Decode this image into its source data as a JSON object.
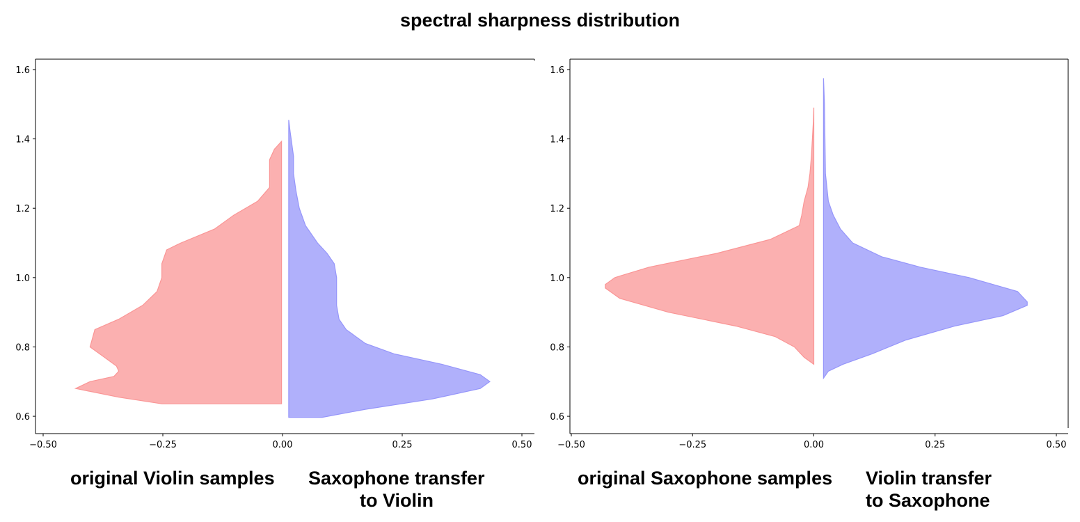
{
  "title": "spectral sharpness distribution",
  "colors": {
    "left": "#fa9696",
    "right": "#9696fa",
    "axis": "#000000"
  },
  "chart_data": [
    {
      "type": "violin",
      "ylim": [
        0.55,
        1.63
      ],
      "xlim": [
        -0.5,
        0.5
      ],
      "xticks": [
        -0.5,
        -0.25,
        0.0,
        0.25,
        0.5
      ],
      "xtick_labels": [
        "−0.50",
        "−0.25",
        "0.00",
        "0.25",
        "0.50"
      ],
      "yticks": [
        0.6,
        0.8,
        1.0,
        1.2,
        1.4,
        1.6
      ],
      "ytick_labels": [
        "0.6",
        "0.8",
        "1.0",
        "1.2",
        "1.4",
        "1.6"
      ],
      "label_left": "original Violin samples",
      "label_right_lines": [
        "Saxophone transfer",
        "to Violin"
      ],
      "series": [
        {
          "side": "left",
          "color": "left",
          "base_x": -0.002,
          "ymin": 0.636,
          "ymax": 1.393,
          "y": [
            0.636,
            0.655,
            0.68,
            0.7,
            0.715,
            0.73,
            0.745,
            0.77,
            0.8,
            0.85,
            0.88,
            0.92,
            0.96,
            1.0,
            1.04,
            1.08,
            1.1,
            1.14,
            1.18,
            1.22,
            1.26,
            1.3,
            1.34,
            1.37,
            1.393
          ],
          "width": [
            0.25,
            0.34,
            0.43,
            0.4,
            0.35,
            0.34,
            0.345,
            0.37,
            0.4,
            0.39,
            0.34,
            0.29,
            0.26,
            0.25,
            0.25,
            0.24,
            0.21,
            0.14,
            0.1,
            0.05,
            0.025,
            0.025,
            0.025,
            0.015,
            0.0
          ]
        },
        {
          "side": "right",
          "color": "right",
          "base_x": 0.013,
          "ymin": 0.597,
          "ymax": 1.455,
          "y": [
            0.597,
            0.62,
            0.65,
            0.68,
            0.7,
            0.72,
            0.75,
            0.78,
            0.81,
            0.85,
            0.88,
            0.92,
            0.96,
            1.0,
            1.04,
            1.07,
            1.1,
            1.15,
            1.2,
            1.25,
            1.3,
            1.35,
            1.4,
            1.42,
            1.455
          ],
          "width": [
            0.07,
            0.16,
            0.3,
            0.4,
            0.42,
            0.4,
            0.32,
            0.22,
            0.16,
            0.12,
            0.105,
            0.1,
            0.1,
            0.1,
            0.095,
            0.08,
            0.06,
            0.035,
            0.022,
            0.015,
            0.01,
            0.01,
            0.005,
            0.003,
            0.0
          ]
        }
      ]
    },
    {
      "type": "violin",
      "ylim": [
        0.55,
        1.63
      ],
      "xlim": [
        -0.5,
        0.5
      ],
      "xticks": [
        -0.5,
        -0.25,
        0.0,
        0.25,
        0.5
      ],
      "xtick_labels": [
        "−0.50",
        "−0.25",
        "0.00",
        "0.25",
        "0.50"
      ],
      "yticks": [
        0.6,
        0.8,
        1.0,
        1.2,
        1.4,
        1.6
      ],
      "ytick_labels": [
        "0.6",
        "0.8",
        "1.0",
        "1.2",
        "1.4",
        "1.6"
      ],
      "label_left": "original Saxophone samples",
      "label_right_lines": [
        "Violin transfer",
        "to Saxophone"
      ],
      "series": [
        {
          "side": "left",
          "color": "left",
          "base_x": 0.0,
          "ymin": 0.75,
          "ymax": 1.49,
          "y": [
            0.75,
            0.77,
            0.8,
            0.83,
            0.86,
            0.9,
            0.94,
            0.97,
            0.98,
            1.0,
            1.03,
            1.07,
            1.11,
            1.15,
            1.18,
            1.22,
            1.26,
            1.3,
            1.35,
            1.4,
            1.45,
            1.49
          ],
          "width": [
            0.0,
            0.02,
            0.04,
            0.08,
            0.16,
            0.3,
            0.4,
            0.43,
            0.43,
            0.41,
            0.34,
            0.2,
            0.09,
            0.03,
            0.025,
            0.02,
            0.012,
            0.008,
            0.005,
            0.003,
            0.001,
            0.0
          ]
        },
        {
          "side": "right",
          "color": "right",
          "base_x": 0.02,
          "ymin": 0.71,
          "ymax": 1.575,
          "y": [
            0.71,
            0.73,
            0.75,
            0.78,
            0.82,
            0.86,
            0.89,
            0.92,
            0.93,
            0.96,
            1.0,
            1.03,
            1.06,
            1.1,
            1.14,
            1.18,
            1.22,
            1.3,
            1.4,
            1.5,
            1.575
          ],
          "width": [
            0.0,
            0.01,
            0.04,
            0.1,
            0.17,
            0.27,
            0.37,
            0.42,
            0.42,
            0.4,
            0.3,
            0.2,
            0.12,
            0.06,
            0.035,
            0.02,
            0.01,
            0.004,
            0.003,
            0.002,
            0.0
          ]
        }
      ]
    }
  ]
}
